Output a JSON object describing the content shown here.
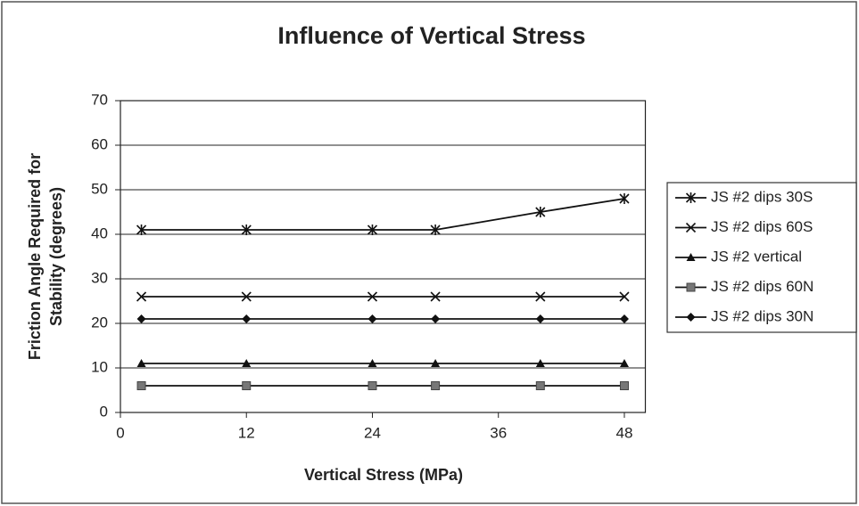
{
  "chart_data": {
    "type": "line",
    "title": "Influence of Vertical Stress",
    "xlabel": "Vertical Stress (MPa)",
    "ylabel": [
      "Friction Angle Required for",
      "Stability (degrees)"
    ],
    "x": [
      2,
      12,
      24,
      30,
      40,
      48
    ],
    "series": [
      {
        "name": "JS #2 dips 30S",
        "color": "#111111",
        "marker": "asterisk",
        "values": [
          41,
          41,
          41,
          41,
          45,
          48
        ]
      },
      {
        "name": "JS #2 dips 60S",
        "color": "#111111",
        "marker": "x",
        "values": [
          26,
          26,
          26,
          26,
          26,
          26
        ]
      },
      {
        "name": "JS #2 vertical",
        "color": "#111111",
        "marker": "triangle",
        "values": [
          11,
          11,
          11,
          11,
          11,
          11
        ]
      },
      {
        "name": "JS #2 dips 60N",
        "color": "#111111",
        "marker": "square",
        "values": [
          6,
          6,
          6,
          6,
          6,
          6
        ]
      },
      {
        "name": "JS #2 dips 30N",
        "color": "#111111",
        "marker": "diamond",
        "values": [
          21,
          21,
          21,
          21,
          21,
          21
        ]
      }
    ],
    "xlim": [
      0,
      50
    ],
    "xticks": [
      0,
      12,
      24,
      36,
      48
    ],
    "ylim": [
      0,
      70
    ],
    "yticks": [
      0,
      10,
      20,
      30,
      40,
      50,
      60,
      70
    ],
    "grid": true,
    "legend": "right"
  }
}
